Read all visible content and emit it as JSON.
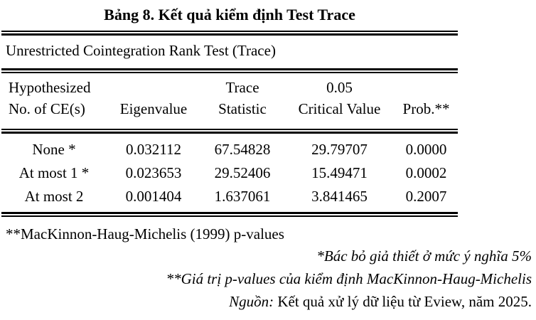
{
  "title": "Bảng 8. Kết quả kiểm định Test Trace",
  "table": {
    "subtitle": "Unrestricted Cointegration Rank Test (Trace)",
    "header": {
      "col1_line1": "Hypothesized",
      "col1_line2": "No. of CE(s)",
      "col2": "Eigenvalue",
      "col3_line1": "Trace",
      "col3_line2": "Statistic",
      "col4_line1": "0.05",
      "col4_line2": "Critical Value",
      "col5": "Prob.**"
    },
    "rows": [
      {
        "hypothesis": "None *",
        "eigenvalue": "0.032112",
        "trace_statistic": "67.54828",
        "critical_value": "29.79707",
        "prob": "0.0000"
      },
      {
        "hypothesis": "At most 1 *",
        "eigenvalue": "0.023653",
        "trace_statistic": "29.52406",
        "critical_value": "15.49471",
        "prob": "0.0002"
      },
      {
        "hypothesis": "At most 2",
        "eigenvalue": "0.001404",
        "trace_statistic": "1.637061",
        "critical_value": "3.841465",
        "prob": "0.2007"
      }
    ]
  },
  "notes": {
    "pvalues_note": "**MacKinnon-Haug-Michelis (1999) p-values",
    "note_reject": "*Bác bỏ giả thiết ở mức ý nghĩa 5%",
    "note_pvalues_vn": "**Giá trị p-values của kiểm định MacKinnon-Haug-Michelis",
    "source_label": "Nguồn:",
    "source_text": " Kết quả xử lý dữ liệu từ Eview, năm 2025."
  },
  "colors": {
    "text": "#000000",
    "background": "#ffffff",
    "rule": "#000000"
  }
}
